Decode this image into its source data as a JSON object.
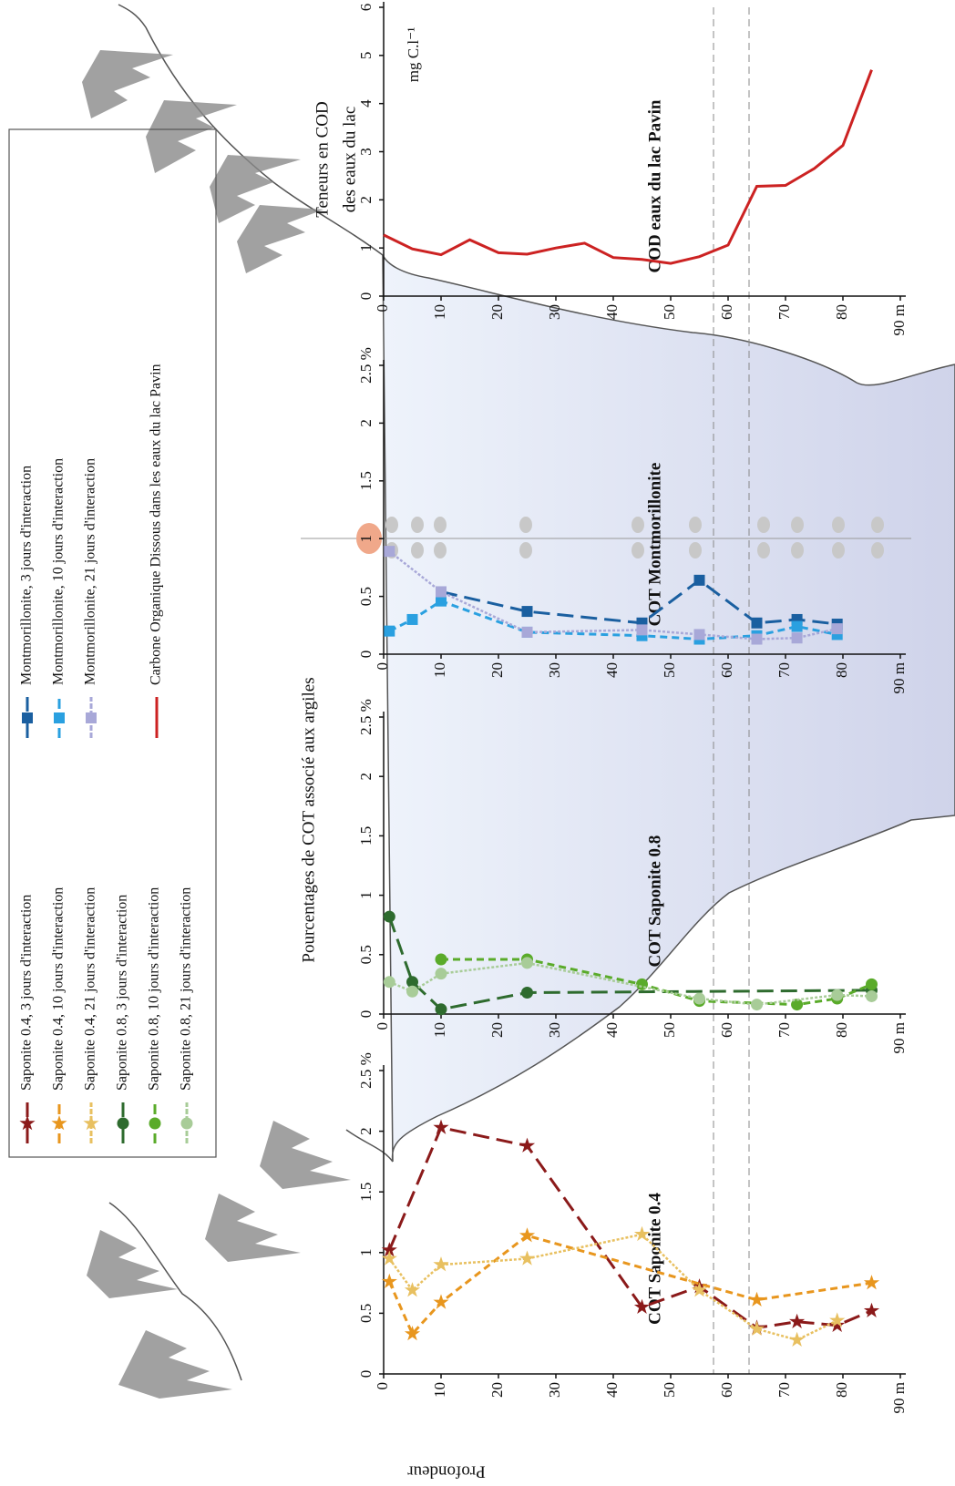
{
  "figure": {
    "title": "Pourcentages de COT associé aux argiles",
    "x_label": "Profondeur"
  },
  "chart_data": [
    {
      "type": "line",
      "panel_label": "COT Saponite 0.4",
      "xlim": [
        0,
        90
      ],
      "xticks": [
        0,
        10,
        20,
        30,
        40,
        50,
        60,
        70,
        80,
        {
          "value": 90,
          "label": "90 m"
        }
      ],
      "ylim": [
        0,
        2.5
      ],
      "yticks": [
        0,
        0.5,
        1,
        1.5,
        2,
        {
          "value": 2.5,
          "label": "2.5 %"
        }
      ],
      "series": [
        {
          "name": "Saponite 0.4, 3 jours d'interaction",
          "color": "#8b1a1a",
          "marker": "star",
          "dash": "long",
          "x": [
            1,
            10,
            25,
            45,
            55,
            65,
            72,
            79,
            85
          ],
          "values": [
            1.02,
            2.03,
            1.88,
            0.55,
            0.72,
            0.38,
            0.43,
            0.4,
            0.52
          ]
        },
        {
          "name": "Saponite 0.4, 10 jours d'interaction",
          "color": "#e8961e",
          "marker": "star",
          "dash": "medium",
          "x": [
            1,
            5,
            10,
            25,
            65,
            85
          ],
          "values": [
            0.76,
            0.33,
            0.59,
            1.14,
            0.61,
            0.75
          ]
        },
        {
          "name": "Saponite 0.4, 21 jours d'interaction",
          "color": "#e8c060",
          "marker": "star",
          "dash": "dotted",
          "x": [
            1,
            5,
            10,
            25,
            45,
            55,
            65,
            72,
            79
          ],
          "values": [
            0.95,
            0.69,
            0.9,
            0.95,
            1.15,
            0.69,
            0.37,
            0.28,
            0.44
          ]
        }
      ]
    },
    {
      "type": "line",
      "panel_label": "COT Saponite 0.8",
      "xlim": [
        0,
        90
      ],
      "xticks": [
        0,
        10,
        20,
        30,
        40,
        50,
        60,
        70,
        80,
        {
          "value": 90,
          "label": "90 m"
        }
      ],
      "ylim": [
        0,
        2.5
      ],
      "yticks": [
        0,
        0.5,
        1,
        1.5,
        2,
        {
          "value": 2.5,
          "label": "2.5 %"
        }
      ],
      "series": [
        {
          "name": "Saponite 0.8, 3 jours d'interaction",
          "color": "#2e6b2e",
          "marker": "circle",
          "dash": "long",
          "x": [
            1,
            5,
            10,
            25,
            85
          ],
          "values": [
            0.82,
            0.27,
            0.04,
            0.18,
            0.2
          ]
        },
        {
          "name": "Saponite 0.8, 10 jours d'interaction",
          "color": "#5aab2a",
          "marker": "circle",
          "dash": "medium",
          "x": [
            10,
            25,
            45,
            55,
            72,
            79,
            85
          ],
          "values": [
            0.46,
            0.46,
            0.25,
            0.11,
            0.08,
            0.13,
            0.25
          ]
        },
        {
          "name": "Saponite 0.8, 21 jours d'interaction",
          "color": "#a8cc98",
          "marker": "circle",
          "dash": "dotted",
          "x": [
            1,
            5,
            10,
            25,
            55,
            65,
            79,
            85
          ],
          "values": [
            0.27,
            0.19,
            0.34,
            0.43,
            0.13,
            0.08,
            0.16,
            0.15
          ]
        }
      ]
    },
    {
      "type": "line",
      "panel_label": "COT Montmorillonite",
      "xlim": [
        0,
        90
      ],
      "xticks": [
        0,
        10,
        20,
        30,
        40,
        50,
        60,
        70,
        80,
        {
          "value": 90,
          "label": "90 m"
        }
      ],
      "ylim": [
        0,
        2.5
      ],
      "yticks": [
        0,
        0.5,
        1,
        1.5,
        2,
        {
          "value": 2.5,
          "label": "2.5 %"
        }
      ],
      "series": [
        {
          "name": "Montmorillonite, 3 jours d'interaction",
          "color": "#1a5fa0",
          "marker": "square",
          "dash": "long",
          "x": [
            10,
            25,
            45,
            55,
            65,
            72,
            79
          ],
          "values": [
            0.54,
            0.37,
            0.27,
            0.64,
            0.27,
            0.3,
            0.26
          ]
        },
        {
          "name": "Montmorillonite, 10 jours d'interaction",
          "color": "#2aa0e0",
          "marker": "square",
          "dash": "medium",
          "x": [
            1,
            5,
            10,
            25,
            45,
            55,
            65,
            72,
            79
          ],
          "values": [
            0.2,
            0.3,
            0.46,
            0.19,
            0.16,
            0.13,
            0.16,
            0.24,
            0.17
          ]
        },
        {
          "name": "Montmorillonite, 21 jours d'interaction",
          "color": "#a8a8d8",
          "marker": "square",
          "dash": "dotted",
          "x": [
            1,
            10,
            25,
            45,
            55,
            65,
            72,
            79
          ],
          "values": [
            0.89,
            0.54,
            0.19,
            0.21,
            0.17,
            0.13,
            0.14,
            0.22
          ]
        }
      ]
    },
    {
      "type": "line",
      "panel_label": "COD eaux du lac Pavin",
      "y_label": [
        "Teneurs en COD",
        "des eaux du lac"
      ],
      "y_unit": "mg C.l⁻¹",
      "xlim": [
        0,
        90
      ],
      "xticks": [
        0,
        10,
        20,
        30,
        40,
        50,
        60,
        70,
        80,
        {
          "value": 90,
          "label": "90 m"
        }
      ],
      "ylim": [
        0,
        6
      ],
      "yticks": [
        0,
        1,
        2,
        3,
        4,
        5,
        6
      ],
      "series": [
        {
          "name": "Carbone Organique Dissous dans les eaux du lac Pavin",
          "color": "#cc2222",
          "marker": "none",
          "dash": "solid",
          "x": [
            0,
            5,
            10,
            15,
            20,
            25,
            30,
            35,
            40,
            45,
            50,
            55,
            60,
            65,
            70,
            75,
            80,
            85
          ],
          "values": [
            1.27,
            0.98,
            0.86,
            1.17,
            0.9,
            0.87,
            1.0,
            1.1,
            0.8,
            0.76,
            0.68,
            0.82,
            1.06,
            2.28,
            2.3,
            2.65,
            3.13,
            4.7
          ]
        }
      ]
    }
  ]
}
